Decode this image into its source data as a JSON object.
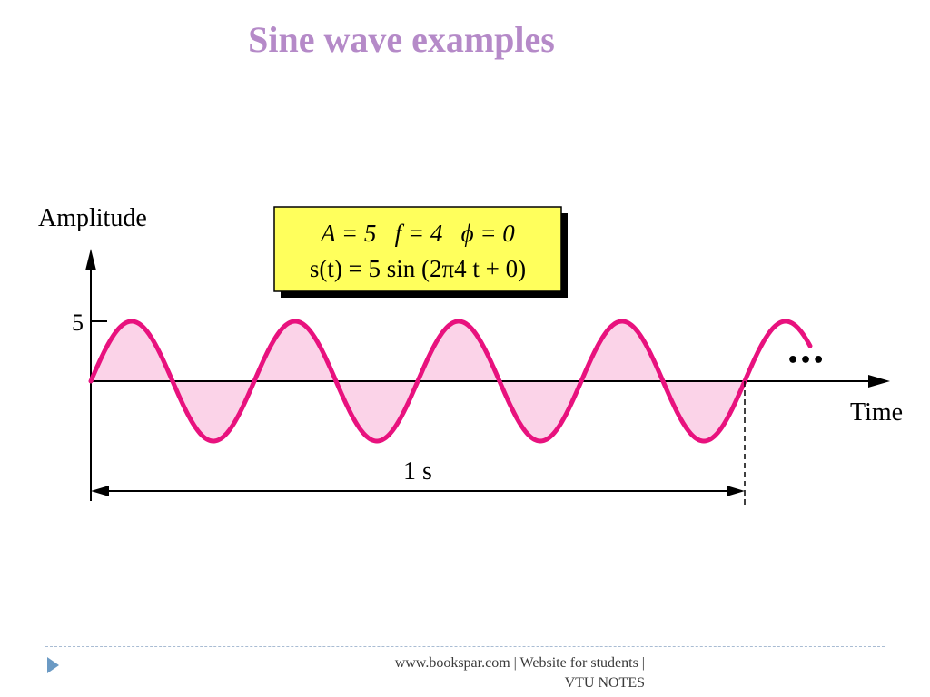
{
  "slide": {
    "title": "Sine wave examples"
  },
  "footer": {
    "line1": "www.bookspar.com | Website for students |",
    "line2": "VTU NOTES"
  },
  "colors": {
    "title": "#b58ac8",
    "wave": "#e8127e",
    "fill": "#fbd3e8",
    "box": "#ffff5c"
  },
  "chart_data": {
    "type": "line",
    "function": "s(t) = 5 sin (2π4t + 0)",
    "params": {
      "A": 5,
      "f": 4,
      "phi": 0
    },
    "params_label": "A = 5   f = 4   ϕ = 0",
    "formula_label": "s(t) = 5 sin (2π4 t + 0)",
    "ylabel": "Amplitude",
    "xlabel": "Time",
    "yticks": [
      {
        "value": 5,
        "label": "5"
      }
    ],
    "xlim": [
      0,
      1.2
    ],
    "ylim": [
      -5,
      5
    ],
    "shown_range": [
      0,
      1.2
    ],
    "period_marker": {
      "start": 0,
      "end": 1,
      "label": "1 s"
    },
    "continuation": "•••"
  }
}
